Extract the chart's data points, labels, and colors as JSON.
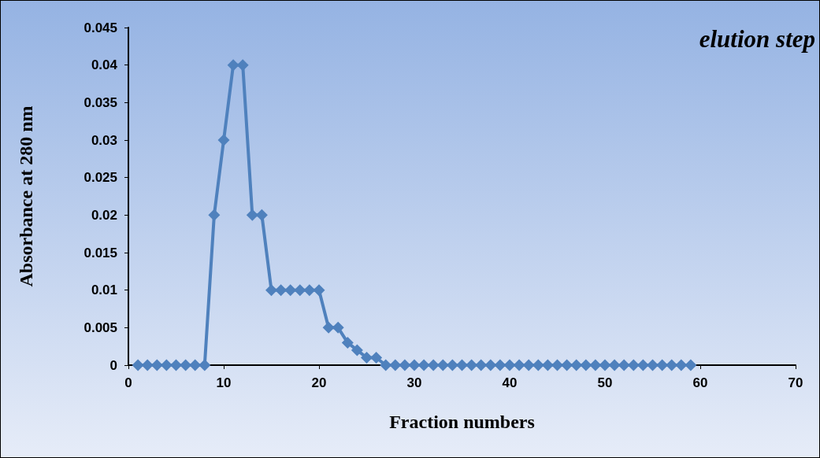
{
  "chart_data": {
    "type": "line",
    "title": "elution step",
    "xlabel": "Fraction numbers",
    "ylabel": "Absorbance at 280 nm",
    "x": [
      1,
      2,
      3,
      4,
      5,
      6,
      7,
      8,
      9,
      10,
      11,
      12,
      13,
      14,
      15,
      16,
      17,
      18,
      19,
      20,
      21,
      22,
      23,
      24,
      25,
      26,
      27,
      28,
      29,
      30,
      31,
      32,
      33,
      34,
      35,
      36,
      37,
      38,
      39,
      40,
      41,
      42,
      43,
      44,
      45,
      46,
      47,
      48,
      49,
      50,
      51,
      52,
      53,
      54,
      55,
      56,
      57,
      58,
      59
    ],
    "series": [
      {
        "color": "#4f81bd",
        "values": [
          0,
          0,
          0,
          0,
          0,
          0,
          0,
          0,
          0.02,
          0.03,
          0.04,
          0.04,
          0.02,
          0.02,
          0.01,
          0.01,
          0.01,
          0.01,
          0.01,
          0.01,
          0.005,
          0.005,
          0.003,
          0.002,
          0.001,
          0.001,
          0,
          0,
          0,
          0,
          0,
          0,
          0,
          0,
          0,
          0,
          0,
          0,
          0,
          0,
          0,
          0,
          0,
          0,
          0,
          0,
          0,
          0,
          0,
          0,
          0,
          0,
          0,
          0,
          0,
          0,
          0,
          0,
          0
        ]
      }
    ],
    "xlim": [
      0,
      70
    ],
    "xticks": [
      0,
      10,
      20,
      30,
      40,
      50,
      60,
      70
    ],
    "ylim": [
      0,
      0.045
    ],
    "yticks": [
      0,
      0.005,
      0.01,
      0.015,
      0.02,
      0.025,
      0.03,
      0.035,
      0.04,
      0.045
    ],
    "grid": false,
    "marker": "diamond",
    "line_style": "solid"
  }
}
